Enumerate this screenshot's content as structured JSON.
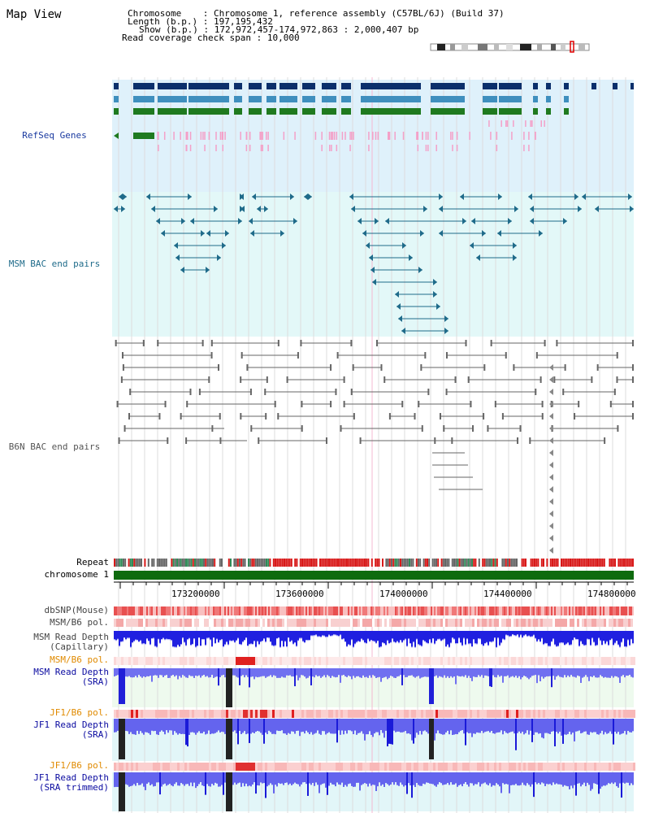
{
  "page": {
    "title": "Map View"
  },
  "info": {
    "chromosome_key": "Chromosome",
    "chromosome_val": "Chromosome 1, reference assembly (C57BL/6J) (Build 37)",
    "length_key": "Length (b.p.)",
    "length_val": "197,195,432",
    "show_key": "Show (b.p.)",
    "show_val": "172,972,457-174,972,863 : 2,000,407 bp",
    "span_key": "Read coverage check span",
    "span_val": "10,000"
  },
  "colors": {
    "refseq_bg": "#dff1fb",
    "msm_bg": "#e3f8f8",
    "gene_dark": "#0b2f6b",
    "gene_mid": "#3f8fbe",
    "gene_green": "#1f7a1f",
    "refseq_pink": "#f4a0c8",
    "msm_pair": "#1f6b8a",
    "b6n_pair": "#666666",
    "chromosome_bar": "#0f6b0f",
    "snp": "#f07070",
    "msm_depth": "#2222dd",
    "jf1_depth": "#3333ee",
    "pol_label": "#e08a00",
    "depth_label": "#0a0aa0"
  },
  "tracks": {
    "refseq": "RefSeq Genes",
    "msm_bac": "MSM BAC end pairs",
    "b6n_bac": "B6N BAC end pairs",
    "repeat": "Repeat",
    "chromosome": "chromosome 1",
    "dbsnp": "dbSNP(Mouse)",
    "msm_b6_pol_1": "MSM/B6 pol.",
    "msm_depth_cap_1": "MSM Read Depth",
    "msm_depth_cap_2": "(Capillary)",
    "msm_b6_pol_2": "MSM/B6 pol.",
    "msm_depth_sra_1": "MSM Read Depth",
    "msm_depth_sra_2": "(SRA)",
    "jf1_b6_pol_1": "JF1/B6 pol.",
    "jf1_depth_sra_1": "JF1 Read Depth",
    "jf1_depth_sra_2": "(SRA)",
    "jf1_b6_pol_2": "JF1/B6 pol.",
    "jf1_depth_trim_1": "JF1 Read Depth",
    "jf1_depth_trim_2": "(SRA trimmed)"
  },
  "axis": {
    "ticks": [
      "173200000",
      "173600000",
      "174000000",
      "174400000",
      "174800000"
    ]
  },
  "ideogram": {
    "icon": "chromosome-ideogram-icon",
    "highlight": "#e00000"
  }
}
